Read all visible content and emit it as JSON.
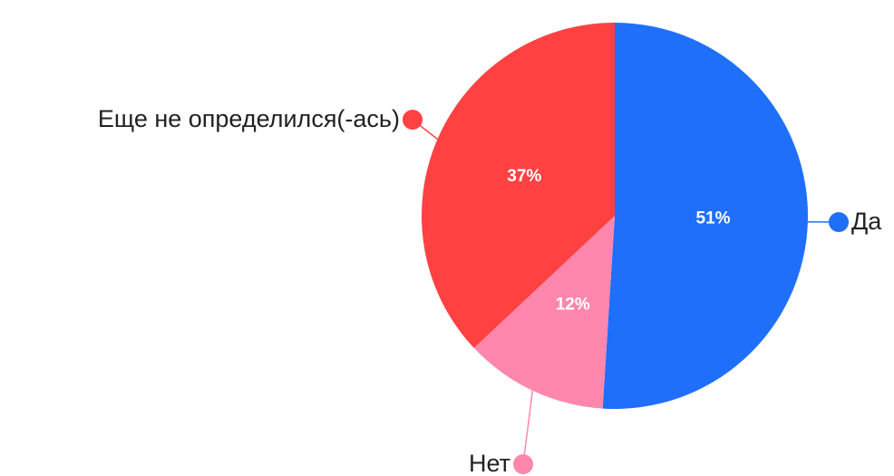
{
  "chart_data": {
    "type": "pie",
    "categories": [
      "Да",
      "Нет",
      "Еще не определился(-ась)"
    ],
    "values": [
      51,
      12,
      37
    ],
    "value_labels": [
      "51%",
      "12%",
      "37%"
    ],
    "colors": [
      "#1f6ffb",
      "#ff87ae",
      "#ff4141"
    ]
  }
}
